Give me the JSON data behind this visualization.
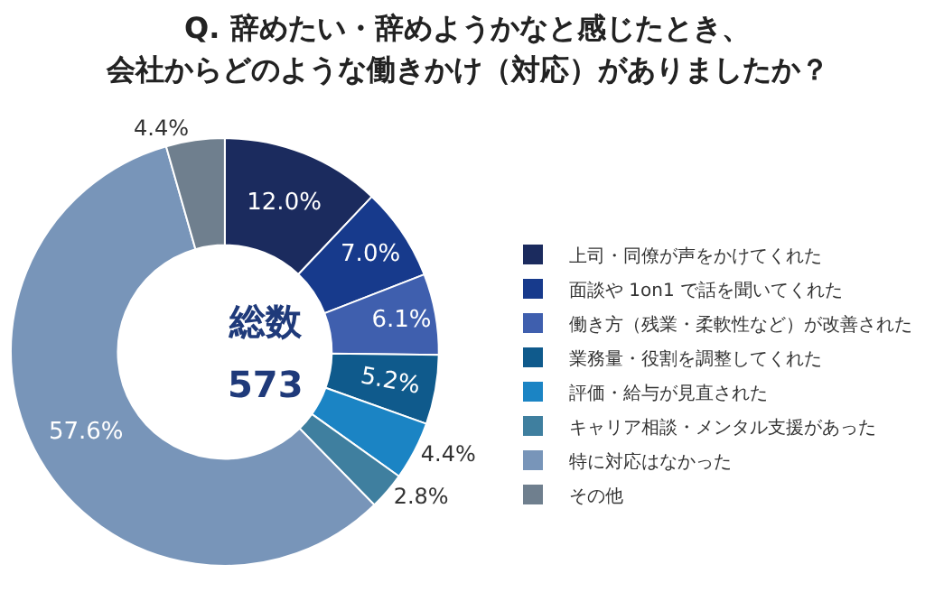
{
  "chart_data": {
    "type": "donut",
    "title": "Q. 辞めたい・辞めようかなと感じたとき、",
    "subtitle": "会社からどのような働きかけ（対応）がありましたか？",
    "categories": [
      "上司・同僚が声をかけてくれた",
      "面談や 1on1 で話を聞いてくれた",
      "働き方（残業・柔軟性など）が改善された",
      "業務量・役割を調整してくれた",
      "評価・給与が見直された",
      "キャリア相談・メンタル支援があった",
      "特に対応はなかった",
      "その他"
    ],
    "values": [
      12.0,
      7.0,
      6.1,
      5.2,
      4.4,
      2.8,
      57.6,
      4.4
    ],
    "value_labels": [
      "12.0%",
      "7.0%",
      "6.1%",
      "5.2%",
      "4.4%",
      "2.8%",
      "57.6%",
      "4.4%"
    ],
    "colors": [
      "#1b2b5e",
      "#173a8c",
      "#3f5fae",
      "#0f5a8c",
      "#1b84c4",
      "#3f7f9f",
      "#7895b9",
      "#6f7f8e"
    ],
    "annotations": [
      "総数",
      "573"
    ],
    "legend": "right"
  }
}
